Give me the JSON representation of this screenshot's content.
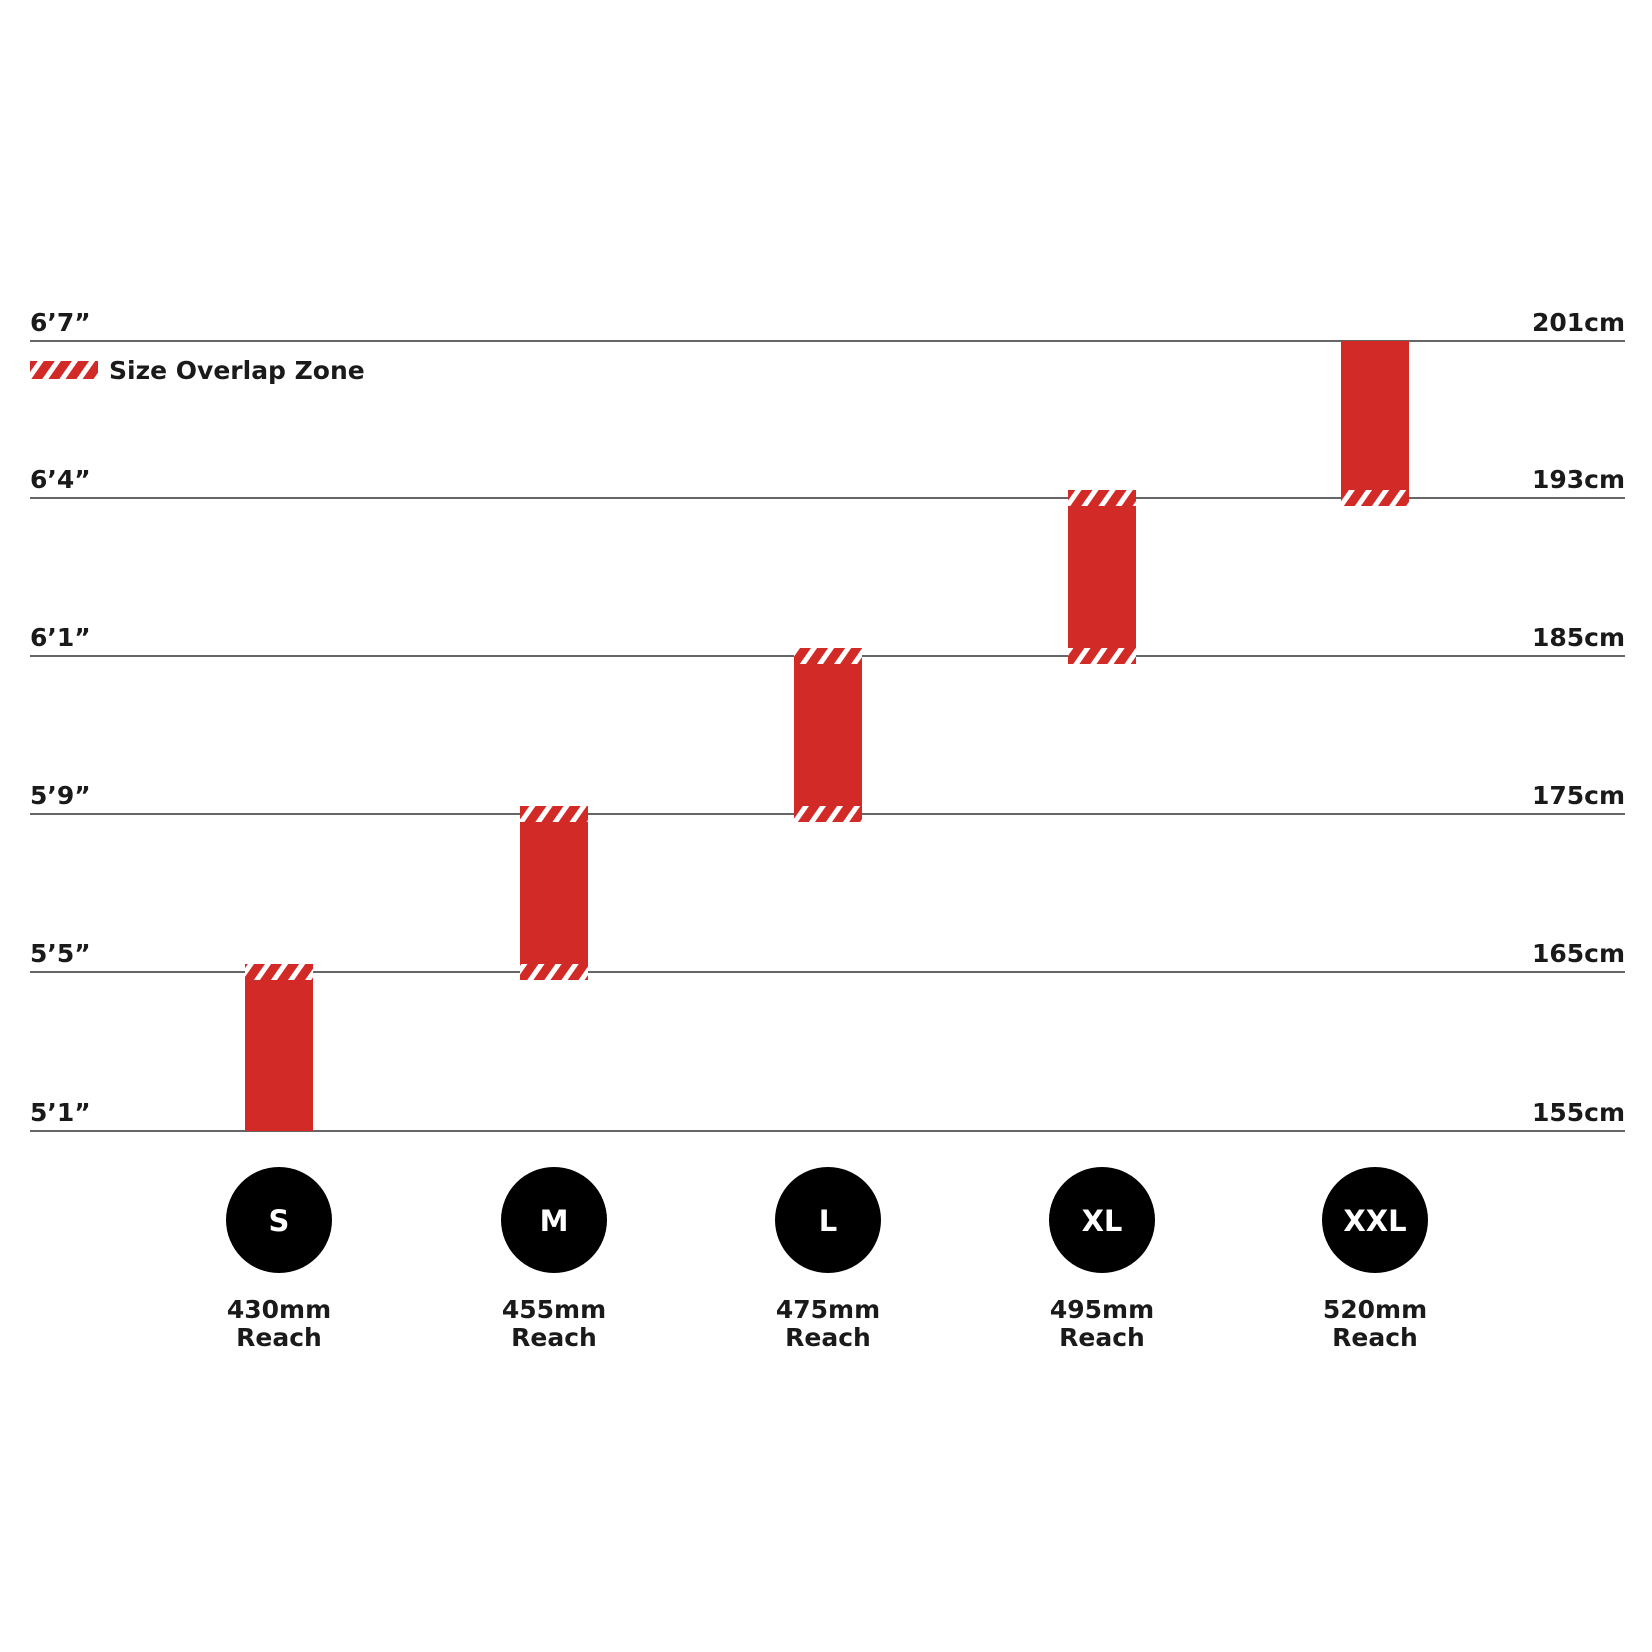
{
  "colors": {
    "bar": "#d22b27",
    "line": "#333333",
    "badge": "#000000",
    "badge_text": "#ffffff",
    "hatch_stripe": "#ffffff"
  },
  "legend": {
    "label": "Size Overlap Zone",
    "icon": "hatch-swatch-icon"
  },
  "chart_data": {
    "type": "bar",
    "subtype": "floating-range",
    "grid": true,
    "legend_position": "top-left",
    "y_ticks": [
      {
        "cm": 155,
        "left_label": "5’1”",
        "right_label": "155cm"
      },
      {
        "cm": 165,
        "left_label": "5’5”",
        "right_label": "165cm"
      },
      {
        "cm": 175,
        "left_label": "5’9”",
        "right_label": "175cm"
      },
      {
        "cm": 185,
        "left_label": "6’1”",
        "right_label": "185cm"
      },
      {
        "cm": 193,
        "left_label": "6’4”",
        "right_label": "193cm"
      },
      {
        "cm": 201,
        "left_label": "6’7”",
        "right_label": "201cm"
      }
    ],
    "ylim": [
      155,
      201
    ],
    "categories": [
      "S",
      "M",
      "L",
      "XL",
      "XXL"
    ],
    "bars": [
      {
        "size": "S",
        "reach_value": "430mm",
        "reach_label": "Reach",
        "low_cm": 155,
        "high_cm": 165,
        "overlap_bottom": false,
        "overlap_top": true
      },
      {
        "size": "M",
        "reach_value": "455mm",
        "reach_label": "Reach",
        "low_cm": 165,
        "high_cm": 175,
        "overlap_bottom": true,
        "overlap_top": true
      },
      {
        "size": "L",
        "reach_value": "475mm",
        "reach_label": "Reach",
        "low_cm": 175,
        "high_cm": 185,
        "overlap_bottom": true,
        "overlap_top": true
      },
      {
        "size": "XL",
        "reach_value": "495mm",
        "reach_label": "Reach",
        "low_cm": 185,
        "high_cm": 193,
        "overlap_bottom": true,
        "overlap_top": true
      },
      {
        "size": "XXL",
        "reach_value": "520mm",
        "reach_label": "Reach",
        "low_cm": 193,
        "high_cm": 201,
        "overlap_bottom": true,
        "overlap_top": false
      }
    ]
  }
}
